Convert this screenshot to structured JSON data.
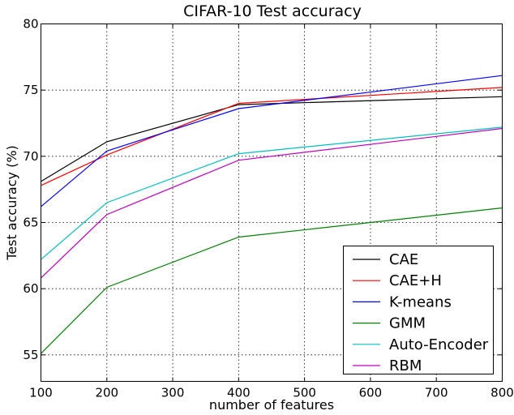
{
  "chart_data": {
    "type": "line",
    "title": "CIFAR-10 Test accuracy",
    "xlabel": "number of features",
    "ylabel": "Test accuracy (%)",
    "xlim": [
      100,
      800
    ],
    "ylim": [
      53,
      80
    ],
    "xticks": [
      100,
      200,
      300,
      400,
      500,
      600,
      700,
      800
    ],
    "yticks": [
      55,
      60,
      65,
      70,
      75,
      80
    ],
    "grid": true,
    "legend_position": "lower-right",
    "x": [
      100,
      200,
      400,
      800
    ],
    "series": [
      {
        "name": "CAE",
        "color": "#000000",
        "values": [
          68.1,
          71.1,
          73.9,
          74.5
        ]
      },
      {
        "name": "CAE+H",
        "color": "#ff0000",
        "values": [
          67.8,
          70.1,
          74.0,
          75.2
        ]
      },
      {
        "name": "K-means",
        "color": "#0000ff",
        "values": [
          66.2,
          70.4,
          73.6,
          76.1
        ]
      },
      {
        "name": "GMM",
        "color": "#008000",
        "values": [
          55.1,
          60.1,
          63.9,
          66.1
        ]
      },
      {
        "name": "Auto-Encoder",
        "color": "#00bfbf",
        "values": [
          62.2,
          66.5,
          70.2,
          72.2
        ]
      },
      {
        "name": "RBM",
        "color": "#bf00bf",
        "values": [
          60.8,
          65.6,
          69.7,
          72.1
        ]
      }
    ]
  }
}
